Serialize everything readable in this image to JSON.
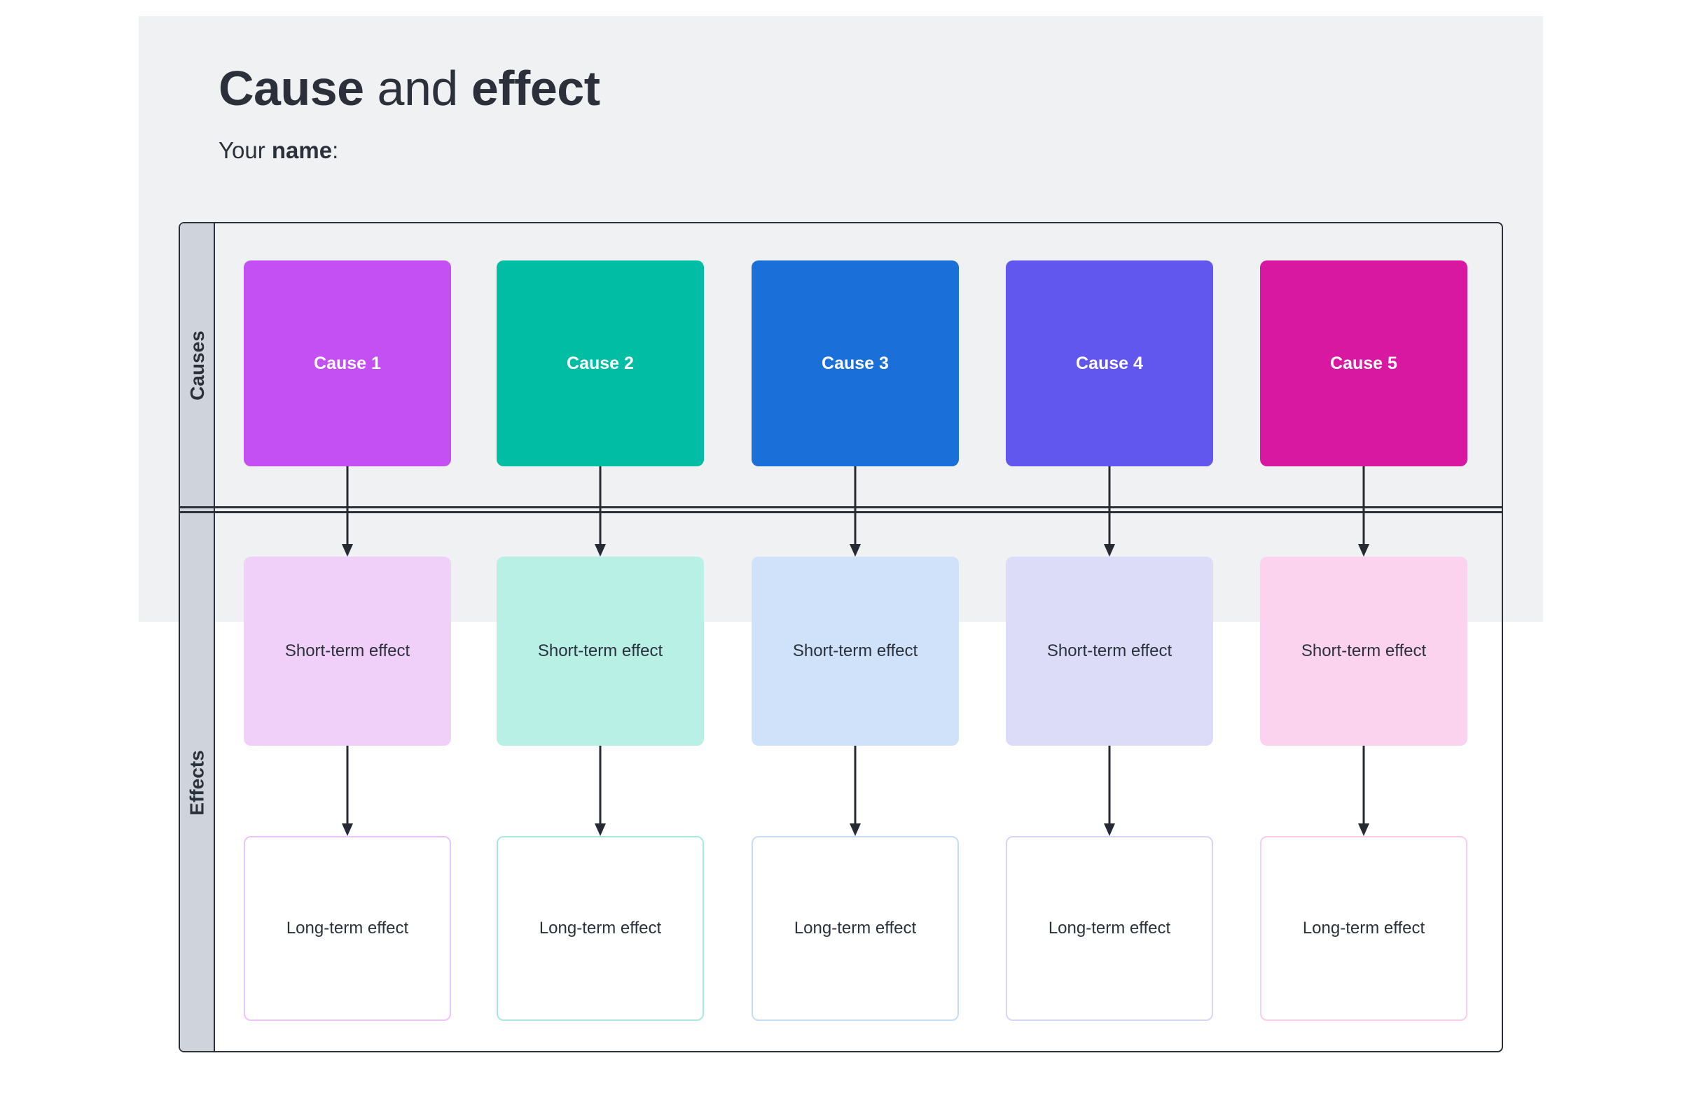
{
  "page": {
    "title": {
      "bold1": "Cause",
      "mid": " and ",
      "bold2": "effect"
    },
    "subtitle": {
      "pre": "Your ",
      "bold": "name",
      "post": ":"
    }
  },
  "matrix": {
    "row_headers": [
      {
        "label": "Causes"
      },
      {
        "label": "Effects"
      }
    ],
    "columns": [
      {
        "cause_label": "Cause 1",
        "short_label": "Short-term effect",
        "long_label": "Long-term effect",
        "cause_color": "#c44ff2",
        "short_fill": "#f0d0f9",
        "long_border": "#edc4f7"
      },
      {
        "cause_label": "Cause 2",
        "short_label": "Short-term effect",
        "long_label": "Long-term effect",
        "cause_color": "#01bda4",
        "short_fill": "#b8f0e6",
        "long_border": "#a9e8dd"
      },
      {
        "cause_label": "Cause 3",
        "short_label": "Short-term effect",
        "long_label": "Long-term effect",
        "cause_color": "#1b6fd9",
        "short_fill": "#cfe2fa",
        "long_border": "#c5def7"
      },
      {
        "cause_label": "Cause 4",
        "short_label": "Short-term effect",
        "long_label": "Long-term effect",
        "cause_color": "#6156ee",
        "short_fill": "#dcdcf9",
        "long_border": "#d6d5f7"
      },
      {
        "cause_label": "Cause 5",
        "short_label": "Short-term effect",
        "long_label": "Long-term effect",
        "cause_color": "#d818a0",
        "short_fill": "#fbd3ef",
        "long_border": "#f8cdec"
      }
    ]
  },
  "colors": {
    "page_background": "#ffffff",
    "panel_background": "#f0f1f3",
    "board_border": "#2a2f38",
    "side_column_fill": "#cfd4dc",
    "arrow": "#262b33",
    "text_dark": "#2b313b",
    "cause_text": "#ffffff"
  }
}
